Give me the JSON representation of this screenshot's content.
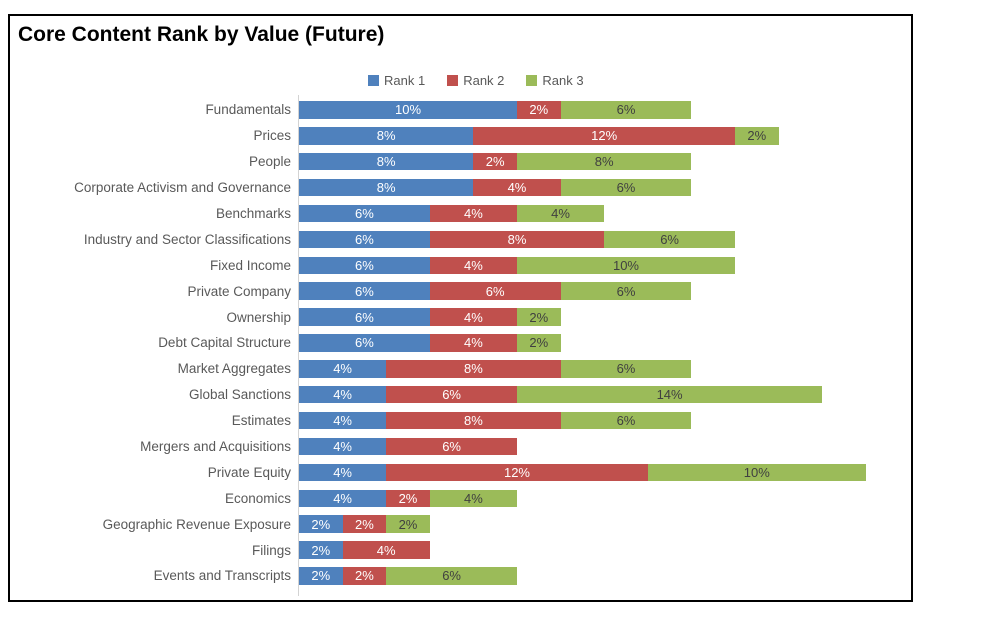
{
  "chart_data": {
    "type": "bar",
    "orientation": "horizontal",
    "stacked": true,
    "title": "Core Content Rank by Value (Future)",
    "legend_position": "top-center",
    "grid": "off",
    "value_suffix": "%",
    "xlim": [
      0,
      28
    ],
    "categories": [
      "Fundamentals",
      "Prices",
      "People",
      "Corporate Activism and Governance",
      "Benchmarks",
      "Industry and Sector Classifications",
      "Fixed Income",
      "Private Company",
      "Ownership",
      "Debt Capital Structure",
      "Market Aggregates",
      "Global Sanctions",
      "Estimates",
      "Mergers and Acquisitions",
      "Private Equity",
      "Economics",
      "Geographic Revenue Exposure",
      "Filings",
      "Events and Transcripts"
    ],
    "series": [
      {
        "name": "Rank 1",
        "color": "#4F81BD",
        "label_color": "#FFFFFF",
        "values": [
          10,
          8,
          8,
          8,
          6,
          6,
          6,
          6,
          6,
          6,
          4,
          4,
          4,
          4,
          4,
          4,
          2,
          2,
          2
        ]
      },
      {
        "name": "Rank 2",
        "color": "#C0504D",
        "label_color": "#FFFFFF",
        "values": [
          2,
          12,
          2,
          4,
          4,
          8,
          4,
          6,
          4,
          4,
          8,
          6,
          8,
          6,
          12,
          2,
          2,
          4,
          2
        ]
      },
      {
        "name": "Rank 3",
        "color": "#9BBB59",
        "label_color": "#404040",
        "values": [
          6,
          2,
          8,
          6,
          4,
          6,
          10,
          6,
          2,
          2,
          6,
          14,
          6,
          0,
          10,
          4,
          2,
          0,
          6
        ]
      }
    ]
  },
  "styles": {
    "axis_line_color": "#D3D3D3",
    "category_label_color": "#595959",
    "title_color": "#000000"
  }
}
